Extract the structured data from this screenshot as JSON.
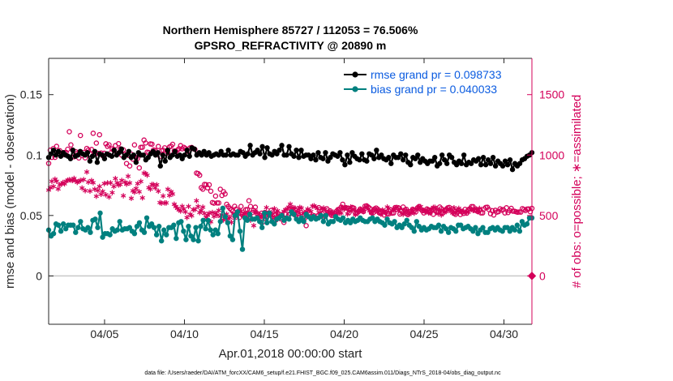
{
  "chart_data": {
    "type": "line",
    "title": "Northern Hemisphere 85727 / 112053 = 76.506%",
    "subtitle": "GPSRO_REFRACTIVITY @ 20890 m",
    "xlabel": "Apr.01,2018 00:00:00 start",
    "ylabel": "rmse and bias (model - observation)",
    "ylabel_right": "# of obs: o=possible; ∗=assimilated",
    "xlim": [
      0.5,
      30.75
    ],
    "ylim": [
      -0.04,
      0.18
    ],
    "ylim_right": [
      -400,
      1800
    ],
    "x_ticks": [
      {
        "value": 4,
        "label": "04/05"
      },
      {
        "value": 9,
        "label": "04/10"
      },
      {
        "value": 14,
        "label": "04/15"
      },
      {
        "value": 19,
        "label": "04/20"
      },
      {
        "value": 24,
        "label": "04/25"
      },
      {
        "value": 29,
        "label": "04/30"
      }
    ],
    "y_ticks": [
      {
        "value": 0,
        "label": "0"
      },
      {
        "value": 0.05,
        "label": "0.05"
      },
      {
        "value": 0.1,
        "label": "0.1"
      },
      {
        "value": 0.15,
        "label": "0.15"
      }
    ],
    "y_ticks_right": [
      {
        "value": 0,
        "label": "0"
      },
      {
        "value": 500,
        "label": "500"
      },
      {
        "value": 1000,
        "label": "1000"
      },
      {
        "value": 1500,
        "label": "1500"
      }
    ],
    "legend_position": "top-right",
    "grid": false,
    "series": [
      {
        "name": "rmse grand pr = 0.098733",
        "axis": "left",
        "color": "#000000",
        "marker": "dot",
        "values": [
          0.098,
          0.101,
          0.104,
          0.1,
          0.103,
          0.099,
          0.102,
          0.1,
          0.099,
          0.097,
          0.104,
          0.099,
          0.1,
          0.103,
          0.101,
          0.1,
          0.102,
          0.095,
          0.099,
          0.103,
          0.094,
          0.101,
          0.1,
          0.097,
          0.101,
          0.1,
          0.099,
          0.104,
          0.1,
          0.102,
          0.105,
          0.098,
          0.1,
          0.103,
          0.098,
          0.1,
          0.094,
          0.102,
          0.1,
          0.1,
          0.096,
          0.098,
          0.101,
          0.103,
          0.1,
          0.102,
          0.091,
          0.1,
          0.095,
          0.104,
          0.098,
          0.1,
          0.103,
          0.099,
          0.1,
          0.097,
          0.1,
          0.104,
          0.099,
          0.106,
          0.105,
          0.1,
          0.102,
          0.1,
          0.103,
          0.1,
          0.102,
          0.099,
          0.1,
          0.101,
          0.1,
          0.103,
          0.1,
          0.1,
          0.104,
          0.1,
          0.101,
          0.1,
          0.1,
          0.103,
          0.102,
          0.099,
          0.101,
          0.108,
          0.1,
          0.102,
          0.104,
          0.101,
          0.107,
          0.098,
          0.106,
          0.101,
          0.1,
          0.103,
          0.101,
          0.104,
          0.108,
          0.1,
          0.1,
          0.107,
          0.101,
          0.099,
          0.104,
          0.098,
          0.104,
          0.099,
          0.1,
          0.1,
          0.097,
          0.1,
          0.096,
          0.102,
          0.098,
          0.097,
          0.102,
          0.095,
          0.098,
          0.101,
          0.1,
          0.099,
          0.102,
          0.096,
          0.092,
          0.1,
          0.094,
          0.102,
          0.099,
          0.097,
          0.096,
          0.101,
          0.096,
          0.095,
          0.101,
          0.1,
          0.097,
          0.104,
          0.098,
          0.1,
          0.097,
          0.096,
          0.098,
          0.093,
          0.1,
          0.098,
          0.098,
          0.101,
          0.096,
          0.1,
          0.094,
          0.092,
          0.098,
          0.097,
          0.1,
          0.094,
          0.097,
          0.095,
          0.093,
          0.095,
          0.095,
          0.098,
          0.091,
          0.093,
          0.1,
          0.096,
          0.093,
          0.1,
          0.098,
          0.094,
          0.092,
          0.095,
          0.093,
          0.1,
          0.092,
          0.094,
          0.093,
          0.096,
          0.095,
          0.097,
          0.092,
          0.098,
          0.092,
          0.096,
          0.093,
          0.098,
          0.091,
          0.095,
          0.093,
          0.091,
          0.095,
          0.092,
          0.096,
          0.088,
          0.093,
          0.091,
          0.093,
          0.096,
          0.097,
          0.099,
          0.1,
          0.102
        ]
      },
      {
        "name": "bias grand pr = 0.040033",
        "axis": "left",
        "color": "#00807f",
        "marker": "dot",
        "values": [
          0.038,
          0.033,
          0.035,
          0.043,
          0.042,
          0.037,
          0.043,
          0.039,
          0.042,
          0.042,
          0.042,
          0.036,
          0.04,
          0.045,
          0.039,
          0.038,
          0.04,
          0.036,
          0.046,
          0.047,
          0.04,
          0.052,
          0.032,
          0.035,
          0.035,
          0.034,
          0.039,
          0.037,
          0.038,
          0.045,
          0.038,
          0.039,
          0.039,
          0.04,
          0.037,
          0.035,
          0.041,
          0.044,
          0.038,
          0.036,
          0.048,
          0.041,
          0.043,
          0.04,
          0.034,
          0.041,
          0.029,
          0.038,
          0.034,
          0.04,
          0.04,
          0.042,
          0.031,
          0.044,
          0.045,
          0.037,
          0.03,
          0.041,
          0.033,
          0.03,
          0.04,
          0.029,
          0.041,
          0.046,
          0.039,
          0.046,
          0.038,
          0.034,
          0.038,
          0.035,
          0.045,
          0.056,
          0.049,
          0.044,
          0.033,
          0.03,
          0.05,
          0.053,
          0.037,
          0.022,
          0.048,
          0.046,
          0.051,
          0.047,
          0.047,
          0.048,
          0.045,
          0.04,
          0.052,
          0.044,
          0.052,
          0.045,
          0.043,
          0.047,
          0.048,
          0.05,
          0.046,
          0.048,
          0.047,
          0.053,
          0.051,
          0.047,
          0.045,
          0.048,
          0.045,
          0.051,
          0.049,
          0.047,
          0.049,
          0.047,
          0.048,
          0.05,
          0.045,
          0.05,
          0.043,
          0.045,
          0.045,
          0.049,
          0.047,
          0.046,
          0.048,
          0.044,
          0.046,
          0.044,
          0.047,
          0.045,
          0.046,
          0.048,
          0.046,
          0.045,
          0.045,
          0.047,
          0.048,
          0.045,
          0.047,
          0.045,
          0.044,
          0.042,
          0.047,
          0.044,
          0.043,
          0.045,
          0.04,
          0.042,
          0.04,
          0.043,
          0.046,
          0.042,
          0.04,
          0.037,
          0.045,
          0.041,
          0.038,
          0.04,
          0.038,
          0.039,
          0.041,
          0.04,
          0.04,
          0.042,
          0.037,
          0.041,
          0.039,
          0.036,
          0.04,
          0.039,
          0.037,
          0.042,
          0.042,
          0.039,
          0.04,
          0.041,
          0.039,
          0.037,
          0.04,
          0.035,
          0.038,
          0.04,
          0.036,
          0.036,
          0.039,
          0.04,
          0.038,
          0.04,
          0.038,
          0.037,
          0.04,
          0.04,
          0.037,
          0.04,
          0.038,
          0.042,
          0.037,
          0.045,
          0.042,
          0.043,
          0.048,
          0.048
        ]
      },
      {
        "name": "possible",
        "axis": "right",
        "color": "#d4005a",
        "marker": "circle",
        "values": [
          931,
          1040,
          981,
          1054,
          981,
          1072,
          1018,
          1036,
          1016,
          1003,
          1021,
          1022,
          1048,
          1193,
          1084,
          1042,
          986,
          1028,
          1014,
          976,
          1162,
          996,
          1022,
          977,
          1055,
          1042,
          1008,
          1046,
          1180,
          1012,
          1099,
          1014,
          1168,
          1017,
          995,
          1015,
          1093,
          1072,
          1084,
          1017,
          1051,
          1042,
          1078,
          1012,
          1094,
          1052,
          999,
          1043,
          1006,
          930,
          998,
          910,
          1007,
          966,
          1084,
          980,
          974,
          894,
          1064,
          1065,
          1124,
          1100,
          1024,
          1021,
          1092,
          1090,
          1042,
          1038,
          1012,
          1071,
          990,
          1036,
          1040,
          1060,
          1014,
          1020,
          1067,
          1073,
          1089,
          1034,
          1030,
          1041,
          1052,
          1078,
          1052,
          1064,
          1055,
          1040,
          1005,
          1060,
          1063,
          1053,
          1047,
          851,
          847,
          833,
          730,
          718,
          757,
          755,
          729,
          754,
          701,
          607,
          602,
          661,
          604,
          604,
          717,
          666,
          697,
          678,
          593,
          574,
          559,
          546,
          537,
          576,
          553,
          529,
          483,
          575,
          510,
          498,
          548,
          549,
          622,
          575,
          524,
          542,
          569,
          517,
          484,
          502,
          519,
          448,
          525,
          492,
          519,
          503,
          542,
          492,
          505,
          463,
          483,
          511,
          472,
          484,
          443,
          512,
          477,
          506,
          515,
          543,
          536,
          503,
          519,
          517,
          484,
          524,
          461,
          476,
          416,
          536,
          520,
          490,
          493,
          498,
          482,
          495,
          565,
          493,
          515,
          523,
          491,
          556,
          524,
          539,
          501,
          501,
          515,
          534,
          549,
          552,
          569,
          593,
          562,
          565,
          561,
          524,
          549,
          567,
          561,
          517,
          520,
          533,
          553,
          543,
          533,
          577,
          580,
          570,
          559,
          524,
          521,
          554,
          562,
          551,
          523,
          518,
          535,
          504,
          527,
          515,
          513,
          547,
          519,
          521,
          566,
          552,
          564,
          512,
          536,
          570,
          545,
          551,
          507,
          531,
          534,
          552,
          542,
          531,
          563,
          574,
          553,
          539,
          521,
          536,
          554,
          545,
          527,
          547,
          510,
          546,
          530,
          527,
          570,
          557,
          521,
          542,
          551,
          563,
          567,
          542,
          555,
          517,
          509,
          523,
          545,
          508,
          529,
          517,
          551,
          519,
          548,
          556,
          573,
          573,
          543,
          543,
          533,
          547,
          521,
          521,
          555,
          567,
          568,
          549,
          515,
          540,
          504,
          543,
          528,
          532,
          555,
          544,
          549,
          521,
          564,
          524,
          541,
          559,
          536,
          535,
          531,
          527,
          529,
          528,
          557,
          550,
          541,
          553,
          554,
          531,
          559
        ]
      },
      {
        "name": "assimilated",
        "axis": "right",
        "color": "#d4005a",
        "marker": "asterisk",
        "values": [
          710,
          730,
          783,
          740,
          800,
          783,
          720,
          754,
          759,
          773,
          762,
          783,
          792,
          796,
          793,
          790,
          807,
          786,
          774,
          782,
          790,
          727,
          797,
          705,
          860,
          776,
          702,
          789,
          771,
          717,
          659,
          707,
          740,
          675,
          699,
          764,
          671,
          770,
          653,
          770,
          689,
          740,
          806,
          770,
          752,
          757,
          790,
          663,
          776,
          759,
          825,
          769,
          642,
          704,
          693,
          723,
          764,
          696,
          782,
          646,
          851,
          847,
          833,
          730,
          718,
          757,
          755,
          729,
          754,
          701,
          607,
          602,
          661,
          604,
          604,
          717,
          666,
          697,
          678,
          593,
          574,
          559,
          546,
          537,
          576,
          553,
          529,
          483,
          575,
          510,
          498,
          548,
          549,
          622,
          575,
          524,
          542,
          569,
          517,
          484,
          502,
          519,
          448,
          525,
          492,
          519,
          503,
          542,
          492,
          505,
          463,
          483,
          511,
          472,
          484,
          443,
          512,
          477,
          506,
          515,
          543,
          536,
          503,
          519,
          517,
          484,
          524,
          461,
          476,
          416,
          536,
          520,
          490,
          493,
          498,
          482,
          495,
          565,
          493,
          515,
          523,
          491,
          556,
          524,
          539,
          501,
          501,
          515,
          534,
          549,
          552,
          569,
          593,
          562,
          565,
          561,
          524,
          549,
          567,
          561,
          517,
          520,
          533,
          553,
          543,
          533,
          577,
          580,
          570,
          559,
          524,
          521,
          554,
          562,
          551,
          523,
          518,
          535,
          504,
          527,
          515,
          513,
          547,
          519,
          521,
          566,
          552,
          564,
          512,
          536,
          570,
          545,
          551,
          507,
          531,
          534,
          552,
          542,
          531,
          563,
          574,
          553,
          539,
          521,
          536,
          554,
          545,
          527,
          547,
          510,
          546,
          530,
          527,
          570,
          557,
          521,
          542,
          551,
          563,
          567,
          542,
          555,
          517,
          509,
          523,
          545,
          508,
          529,
          517,
          551,
          519,
          548,
          556,
          573,
          573,
          543,
          543,
          533,
          547,
          521,
          521,
          555,
          567,
          568,
          549,
          515,
          540,
          504,
          543,
          528,
          532,
          555,
          544,
          549,
          521,
          564,
          524,
          541,
          559,
          536,
          535,
          531,
          527,
          529,
          528,
          557,
          550,
          541,
          553,
          554,
          531,
          559
        ]
      }
    ],
    "end_marker": {
      "x": 30.75,
      "value": 0,
      "axis": "right",
      "shape": "diamond"
    }
  },
  "footer": "data file: /Users/raeder/DAI/ATM_forcXX/CAM6_setup/f.e21.FHIST_BGC.f09_025.CAM6assim.011/Diags_NTrS_2018-04/obs_diag_output.nc",
  "colors": {
    "rmse": "#000000",
    "bias": "#00807f",
    "obs": "#d4005a",
    "legend_text": "#0a5be0",
    "zero_line": "#c8c8c8",
    "axis": "#262626"
  }
}
